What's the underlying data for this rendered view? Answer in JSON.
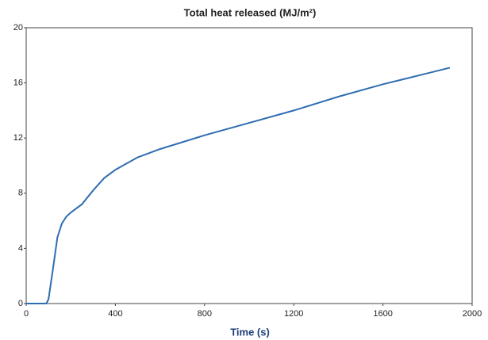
{
  "chart_data": {
    "type": "line",
    "title": "Total heat released (MJ/m²)",
    "x_label": "Time (s)",
    "x": [
      0,
      90,
      100,
      120,
      140,
      160,
      180,
      200,
      250,
      300,
      350,
      400,
      500,
      600,
      800,
      1000,
      1200,
      1400,
      1600,
      1800,
      1900
    ],
    "series": [
      {
        "name": "Total heat released",
        "color": "#2f6db0",
        "values": [
          0,
          0,
          0.3,
          2.5,
          4.8,
          5.8,
          6.3,
          6.6,
          7.2,
          8.2,
          9.1,
          9.7,
          10.6,
          11.2,
          12.2,
          13.1,
          14.0,
          15.0,
          15.9,
          16.7,
          17.1
        ]
      }
    ],
    "xlim": [
      0,
      2000
    ],
    "xticks": [
      0,
      400,
      800,
      1200,
      1600,
      2000
    ],
    "ylim": [
      0,
      20
    ],
    "yticks": [
      0,
      4,
      8,
      12,
      16,
      20
    ]
  }
}
